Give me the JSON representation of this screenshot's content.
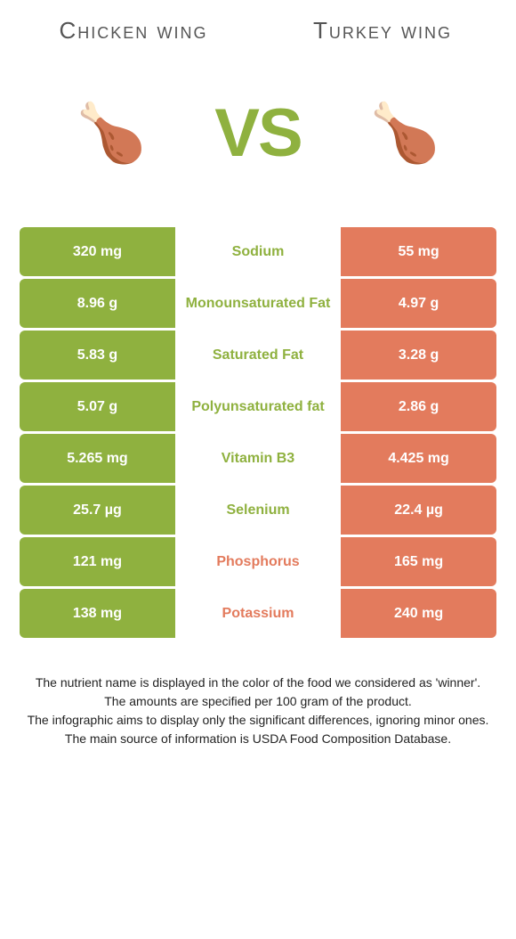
{
  "header": {
    "left_title": "Chicken wing",
    "right_title": "Turkey wing",
    "vs_label": "VS",
    "vs_color": "#8fb13f",
    "title_color": "#555555",
    "title_fontsize": 26
  },
  "images": {
    "left_emoji": "🍗",
    "right_emoji": "🍗"
  },
  "colors": {
    "left_bg": "#8fb13f",
    "left_fg": "#ffffff",
    "right_bg": "#e37b5d",
    "right_fg": "#ffffff",
    "middle_bg": "#ffffff",
    "nutrient_left_winner": "#8fb13f",
    "nutrient_right_winner": "#e37b5d"
  },
  "rows": [
    {
      "left": "320 mg",
      "nutrient": "Sodium",
      "right": "55 mg",
      "winner": "left"
    },
    {
      "left": "8.96 g",
      "nutrient": "Monounsaturated Fat",
      "right": "4.97 g",
      "winner": "left"
    },
    {
      "left": "5.83 g",
      "nutrient": "Saturated Fat",
      "right": "3.28 g",
      "winner": "left"
    },
    {
      "left": "5.07 g",
      "nutrient": "Polyunsaturated fat",
      "right": "2.86 g",
      "winner": "left"
    },
    {
      "left": "5.265 mg",
      "nutrient": "Vitamin B3",
      "right": "4.425 mg",
      "winner": "left"
    },
    {
      "left": "25.7 µg",
      "nutrient": "Selenium",
      "right": "22.4 µg",
      "winner": "left"
    },
    {
      "left": "121 mg",
      "nutrient": "Phosphorus",
      "right": "165 mg",
      "winner": "right"
    },
    {
      "left": "138 mg",
      "nutrient": "Potassium",
      "right": "240 mg",
      "winner": "right"
    }
  ],
  "footnotes": [
    "The nutrient name is displayed in the color of the food we considered as 'winner'.",
    "The amounts are specified per 100 gram of the product.",
    "The infographic aims to display only the significant differences, ignoring minor ones.",
    "The main source of information is USDA Food Composition Database."
  ]
}
